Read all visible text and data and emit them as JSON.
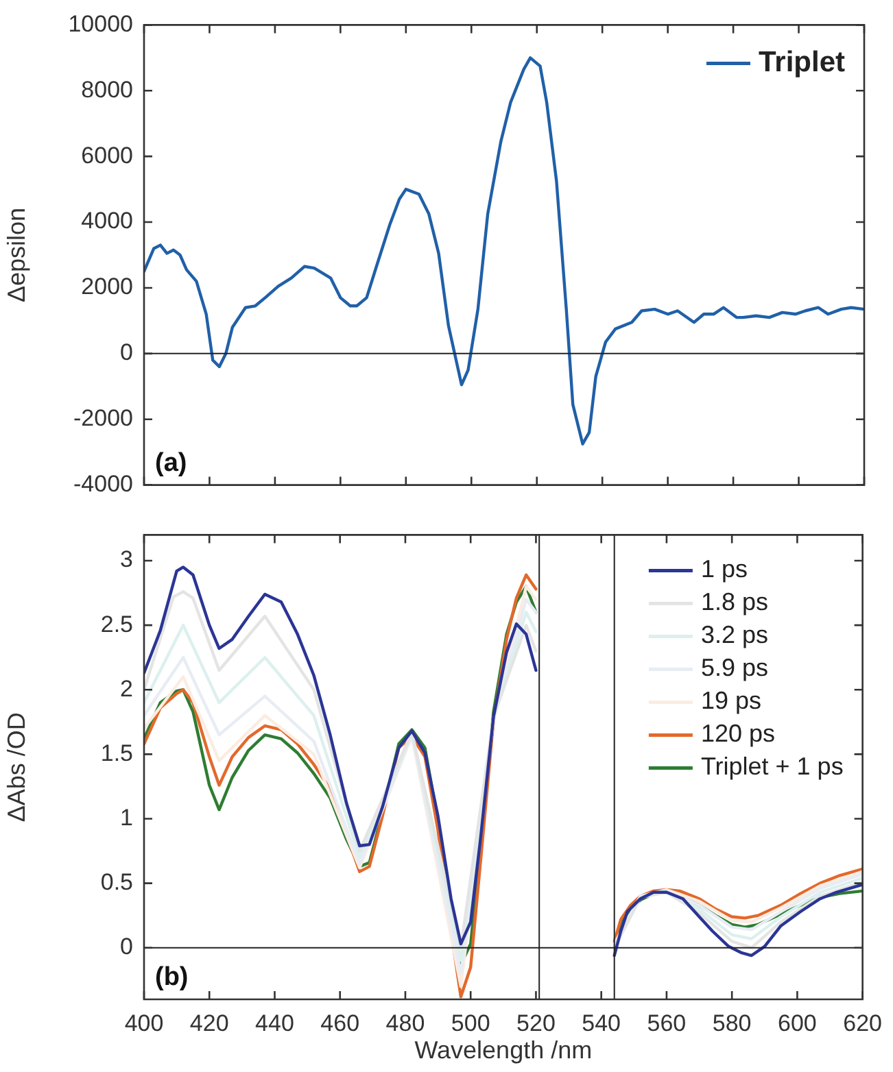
{
  "chart_data": [
    {
      "type": "line",
      "ylabel": "Δepsilon",
      "xlim": [
        400,
        620
      ],
      "xticks": [
        {
          "value": 400,
          "label": null
        },
        {
          "value": 420,
          "label": null
        },
        {
          "value": 440,
          "label": null
        },
        {
          "value": 460,
          "label": null
        },
        {
          "value": 480,
          "label": null
        },
        {
          "value": 500,
          "label": null
        },
        {
          "value": 520,
          "label": null
        },
        {
          "value": 540,
          "label": null
        },
        {
          "value": 560,
          "label": null
        },
        {
          "value": 580,
          "label": null
        },
        {
          "value": 600,
          "label": null
        },
        {
          "value": 620,
          "label": null
        }
      ],
      "ylim": [
        -4000,
        10000
      ],
      "yticks": [
        -4000,
        -2000,
        0,
        2000,
        4000,
        6000,
        8000,
        10000
      ],
      "tick_labels": "y",
      "legend": "top right",
      "ref_lines": [
        {
          "axis": "y",
          "value": 0,
          "label": null,
          "color": "#222222"
        }
      ],
      "annotations": [
        "(a)"
      ],
      "series": [
        {
          "name": "Triplet",
          "color": "#2060a8",
          "x": [
            400,
            403,
            405,
            407,
            409,
            411,
            413,
            416,
            419,
            421,
            423,
            425,
            427,
            431,
            434,
            437,
            441,
            445,
            449,
            452,
            457,
            460,
            463,
            465,
            468,
            471,
            475,
            478,
            480,
            484,
            487,
            490,
            493,
            496,
            497,
            499,
            502,
            505,
            509,
            512,
            516,
            518,
            521,
            523,
            526,
            529,
            531,
            534,
            536,
            538,
            541,
            544,
            549,
            552,
            556,
            560,
            563,
            568,
            571,
            574,
            577,
            581,
            583,
            587,
            591,
            595,
            599,
            602,
            606,
            609,
            613,
            616,
            620
          ],
          "values": [
            2500,
            3200,
            3300,
            3050,
            3150,
            3000,
            2550,
            2200,
            1200,
            -200,
            -400,
            0,
            800,
            1400,
            1450,
            1700,
            2050,
            2300,
            2650,
            2600,
            2300,
            1700,
            1450,
            1450,
            1700,
            2650,
            3900,
            4700,
            5000,
            4850,
            4250,
            3050,
            850,
            -500,
            -950,
            -500,
            1350,
            4250,
            6450,
            7650,
            8650,
            9000,
            8750,
            7650,
            5250,
            1350,
            -1550,
            -2750,
            -2400,
            -700,
            350,
            750,
            950,
            1300,
            1350,
            1200,
            1300,
            950,
            1200,
            1200,
            1400,
            1100,
            1100,
            1150,
            1100,
            1250,
            1200,
            1300,
            1400,
            1200,
            1350,
            1400,
            1350
          ]
        }
      ]
    },
    {
      "type": "line",
      "xlabel": "Wavelength /nm",
      "ylabel": "ΔAbs /OD",
      "xlim": [
        400,
        620
      ],
      "xticks": [
        400,
        420,
        440,
        460,
        480,
        500,
        520,
        540,
        560,
        580,
        600,
        620
      ],
      "ylim": [
        -0.4,
        3.2
      ],
      "yticks": [
        0,
        0.5,
        1,
        1.5,
        2,
        2.5,
        3
      ],
      "legend": "top right",
      "ref_lines": [
        {
          "axis": "y",
          "value": 0,
          "label": null,
          "color": "#222222"
        },
        {
          "axis": "x",
          "value": 521,
          "label": null,
          "color": "#222222"
        },
        {
          "axis": "x",
          "value": 544,
          "label": null,
          "color": "#222222"
        }
      ],
      "annotations": [
        "(b)"
      ],
      "series": [
        {
          "name": "1 ps",
          "color": "#2b3595",
          "x": [
            400,
            405,
            410,
            412,
            415,
            420,
            423,
            427,
            432,
            437,
            442,
            447,
            452,
            457,
            462,
            466,
            469,
            473,
            478,
            482,
            486,
            490,
            494,
            497,
            500,
            503,
            507,
            511,
            514,
            517,
            520,
            532,
            544,
            546,
            548,
            552,
            556,
            560,
            565,
            570,
            574,
            579,
            583,
            586,
            590,
            595,
            601,
            607,
            612,
            620
          ],
          "values": [
            2.13,
            2.46,
            2.92,
            2.95,
            2.89,
            2.5,
            2.32,
            2.39,
            2.57,
            2.74,
            2.68,
            2.43,
            2.11,
            1.65,
            1.12,
            0.79,
            0.8,
            1.09,
            1.55,
            1.68,
            1.51,
            1.02,
            0.38,
            0.03,
            0.2,
            0.84,
            1.79,
            2.29,
            2.51,
            2.43,
            2.15,
            null,
            -0.06,
            0.13,
            0.28,
            0.38,
            0.43,
            0.43,
            0.38,
            0.24,
            0.13,
            0.01,
            -0.04,
            -0.06,
            0.01,
            0.17,
            0.28,
            0.38,
            0.43,
            0.49
          ]
        },
        {
          "name": "1.8 ps",
          "color": "#e4e4e4",
          "x": [
            400,
            409,
            412,
            415,
            423,
            437,
            452,
            466,
            482,
            497,
            507,
            517,
            520,
            532,
            544,
            552,
            560,
            570,
            580,
            586,
            595,
            607,
            620
          ],
          "values": [
            2.0,
            2.72,
            2.76,
            2.71,
            2.15,
            2.57,
            2.0,
            0.75,
            1.67,
            0.0,
            1.79,
            2.5,
            2.3,
            null,
            0.0,
            0.39,
            0.43,
            0.27,
            0.05,
            0.0,
            0.2,
            0.4,
            0.51
          ]
        },
        {
          "name": "3.2 ps",
          "color": "#dcf0ee",
          "x": [
            400,
            412,
            423,
            437,
            452,
            466,
            482,
            497,
            507,
            517,
            520,
            532,
            544,
            552,
            560,
            570,
            580,
            586,
            595,
            607,
            620
          ],
          "values": [
            1.9,
            2.5,
            1.9,
            2.25,
            1.8,
            0.7,
            1.66,
            -0.1,
            1.78,
            2.6,
            2.45,
            null,
            0.0,
            0.39,
            0.44,
            0.3,
            0.1,
            0.07,
            0.24,
            0.43,
            0.54
          ]
        },
        {
          "name": "5.9 ps",
          "color": "#e8ecf4",
          "x": [
            400,
            412,
            423,
            437,
            452,
            466,
            482,
            497,
            507,
            517,
            520,
            532,
            544,
            552,
            560,
            570,
            580,
            586,
            595,
            607,
            620
          ],
          "values": [
            1.8,
            2.25,
            1.65,
            1.95,
            1.6,
            0.65,
            1.65,
            -0.2,
            1.77,
            2.7,
            2.6,
            null,
            0.02,
            0.4,
            0.44,
            0.33,
            0.16,
            0.14,
            0.28,
            0.46,
            0.57
          ]
        },
        {
          "name": "19 ps",
          "color": "#fbece2",
          "x": [
            400,
            412,
            423,
            437,
            452,
            466,
            482,
            497,
            507,
            517,
            520,
            532,
            544,
            552,
            560,
            570,
            580,
            586,
            595,
            607,
            620
          ],
          "values": [
            1.7,
            2.1,
            1.45,
            1.8,
            1.5,
            0.62,
            1.64,
            -0.3,
            1.77,
            2.8,
            2.7,
            null,
            0.03,
            0.4,
            0.45,
            0.36,
            0.21,
            0.2,
            0.31,
            0.48,
            0.59
          ]
        },
        {
          "name": "120 ps",
          "color": "#e2692c",
          "x": [
            400,
            405,
            410,
            412,
            415,
            420,
            423,
            427,
            432,
            437,
            442,
            447,
            452,
            457,
            462,
            466,
            469,
            473,
            478,
            482,
            486,
            490,
            494,
            497,
            500,
            503,
            507,
            511,
            514,
            517,
            520,
            532,
            544,
            546,
            549,
            552,
            556,
            560,
            564,
            570,
            575,
            580,
            584,
            588,
            595,
            601,
            607,
            613,
            620
          ],
          "values": [
            1.58,
            1.86,
            1.97,
            2.0,
            1.9,
            1.48,
            1.26,
            1.48,
            1.63,
            1.72,
            1.69,
            1.58,
            1.42,
            1.23,
            0.88,
            0.59,
            0.63,
            1.02,
            1.55,
            1.64,
            1.48,
            0.91,
            0.13,
            -0.38,
            -0.15,
            0.66,
            1.76,
            2.39,
            2.71,
            2.89,
            2.78,
            null,
            0.05,
            0.22,
            0.33,
            0.4,
            0.44,
            0.45,
            0.44,
            0.38,
            0.3,
            0.24,
            0.23,
            0.25,
            0.33,
            0.42,
            0.5,
            0.56,
            0.61
          ]
        },
        {
          "name": "Triplet + 1 ps",
          "color": "#2e7d32",
          "x": [
            400,
            405,
            410,
            412,
            415,
            420,
            423,
            427,
            432,
            437,
            442,
            447,
            452,
            457,
            462,
            466,
            469,
            473,
            478,
            482,
            486,
            490,
            494,
            497,
            500,
            503,
            507,
            511,
            514,
            517,
            520,
            532,
            544,
            546,
            549,
            552,
            556,
            560,
            564,
            570,
            575,
            580,
            584,
            588,
            595,
            601,
            607,
            613,
            620
          ],
          "values": [
            1.62,
            1.9,
            1.99,
            2.0,
            1.83,
            1.26,
            1.07,
            1.32,
            1.53,
            1.65,
            1.62,
            1.51,
            1.35,
            1.16,
            0.84,
            0.63,
            0.66,
            1.05,
            1.58,
            1.69,
            1.55,
            0.98,
            0.31,
            -0.13,
            0.03,
            0.77,
            1.83,
            2.43,
            2.68,
            2.8,
            2.6,
            null,
            0.0,
            0.2,
            0.3,
            0.37,
            0.42,
            0.43,
            0.4,
            0.33,
            0.25,
            0.18,
            0.16,
            0.18,
            0.26,
            0.33,
            0.39,
            0.42,
            0.44
          ]
        }
      ]
    }
  ]
}
